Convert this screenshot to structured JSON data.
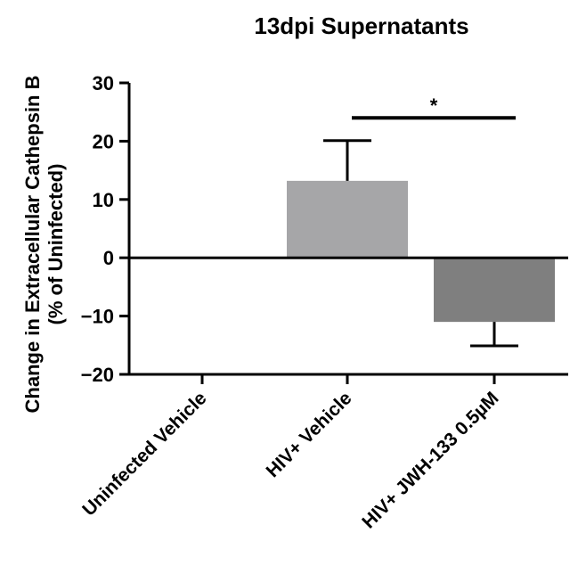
{
  "chart_data": {
    "type": "bar",
    "title": "13dpi Supernatants",
    "xlabel": "",
    "ylabel_line1": "Change in Extracellular Cathepsin B",
    "ylabel_line2": "(% of Uninfected)",
    "ylim": [
      -20,
      30
    ],
    "yticks": [
      30,
      20,
      10,
      0,
      -10,
      -20
    ],
    "ytick_labels": [
      "30",
      "20",
      "10",
      "0",
      "−10",
      "−20"
    ],
    "categories": [
      "Uninfected Vehicle",
      "HIV+ Vehicle",
      "HIV+ JWH-133 0.5µM"
    ],
    "values": [
      0,
      13.2,
      -11
    ],
    "error": [
      0,
      6.9,
      4.1
    ],
    "bar_colors": [
      "#ffffff",
      "#a6a6a8",
      "#7f7f7f"
    ],
    "significance": {
      "label": "*",
      "from_category": 1,
      "to_category": 2,
      "y": 24
    },
    "grid": false,
    "legend": "none"
  }
}
